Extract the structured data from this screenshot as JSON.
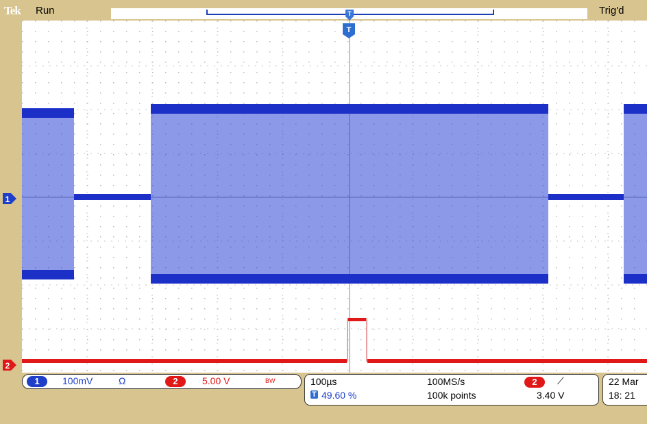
{
  "topbar": {
    "logo": "Tek",
    "run_state": "Run",
    "trigger_state": "Trig'd"
  },
  "markers": {
    "trigger_point": "T",
    "ch1": "1",
    "ch2": "2"
  },
  "readout": {
    "ch1": {
      "number": "1",
      "scale": "100mV",
      "coupling_symbol": "Ω",
      "color": "#1f3fc8"
    },
    "ch2": {
      "number": "2",
      "scale": "5.00 V",
      "bandwidth_symbol": "BW",
      "color": "#e01818"
    },
    "timebase": "100µs",
    "trigger_position_icon": "T",
    "trigger_position": "49.60 %",
    "sample_rate": "100MS/s",
    "record_length": "100k points",
    "trigger_source": "2",
    "trigger_slope_symbol": "⟋",
    "trigger_level": "3.40 V",
    "date": "22 Mar",
    "time": "18: 21"
  },
  "colors": {
    "background": "#d8c48f",
    "ch1": "#1f3fc8",
    "ch2": "#e01818",
    "graticule": "#ffffff"
  }
}
